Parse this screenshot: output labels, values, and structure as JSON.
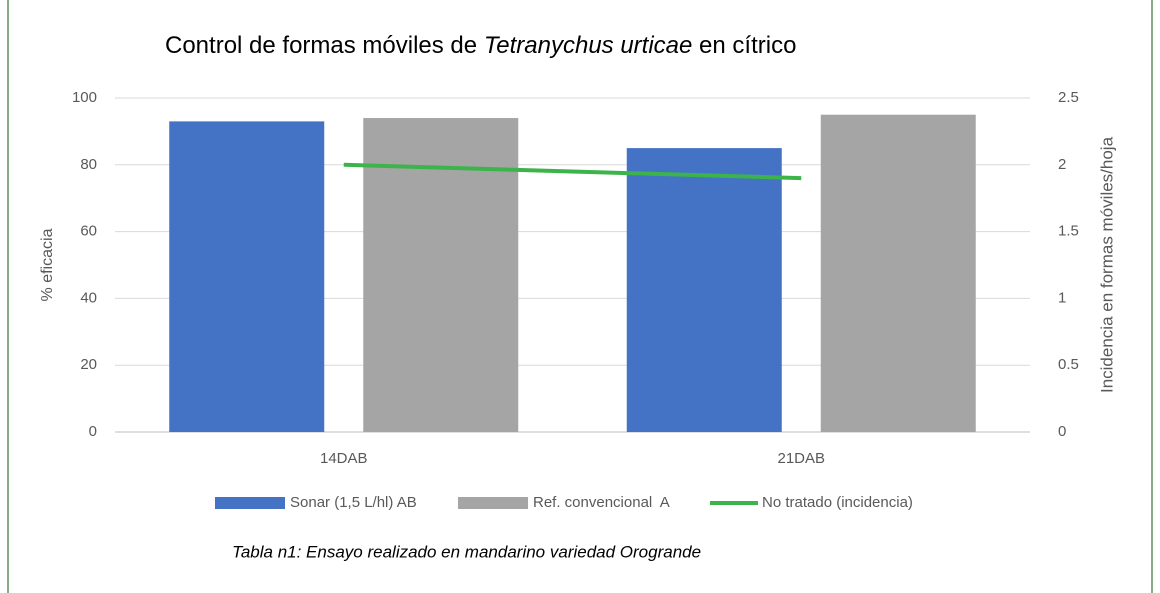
{
  "chart_data": {
    "type": "bar",
    "title": [
      "Control de formas móviles de",
      "Tetranychus urticae",
      "en cítrico"
    ],
    "categories": [
      "14DAB",
      "21DAB"
    ],
    "series": [
      {
        "name": "Sonar (1,5 L/hl) AB",
        "color": "#4472c4",
        "values": [
          93,
          85
        ]
      },
      {
        "name": "Ref. convencional  A",
        "color": "#a5a5a5",
        "values": [
          94,
          95
        ]
      },
      {
        "name": "No tratado (incidencia)",
        "color": "#3cb44b",
        "values": [
          2.0,
          1.9
        ],
        "axis": "y2",
        "type": "line"
      }
    ],
    "ylabel": "% eficacia",
    "y2label": "Incidencia en formas móviles/hoja",
    "ylim": [
      0,
      100
    ],
    "yticks": [
      0,
      20,
      40,
      60,
      80,
      100
    ],
    "y2lim": [
      0,
      2.5
    ],
    "y2ticks": [
      0,
      0.5,
      1,
      1.5,
      2,
      2.5
    ],
    "grid": true,
    "legend": "bottom",
    "caption": "Tabla n1: Ensayo realizado en mandarino variedad Orogrande"
  }
}
